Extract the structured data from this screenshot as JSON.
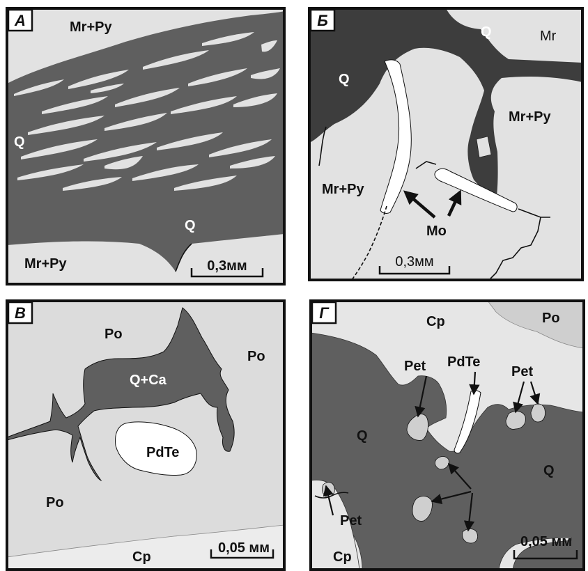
{
  "panels": {
    "a": {
      "letter": "А",
      "labels": [
        "Mr+Py",
        "Q",
        "Q",
        "Mr+Py"
      ],
      "scale": "0,3мм"
    },
    "b": {
      "letter": "Б",
      "labels": [
        "Q",
        "Mr",
        "Q",
        "Mr+Py",
        "Mr+Py",
        "Mo"
      ],
      "scale": "0,3мм"
    },
    "v": {
      "letter": "В",
      "labels": [
        "Po",
        "Po",
        "Q+Ca",
        "PdTe",
        "Po",
        "Cp"
      ],
      "scale": "0,05 мм"
    },
    "g": {
      "letter": "Г",
      "labels": [
        "Cp",
        "Po",
        "Pet",
        "PdTe",
        "Pet",
        "Q",
        "Q",
        "Pet",
        "Cp"
      ],
      "scale": "0,05 мм"
    }
  },
  "colors": {
    "dark": "#5f5f5f",
    "darker": "#3d3d3d",
    "light": "#e2e2e2",
    "white": "#ffffff",
    "midlight": "#cfcfcf"
  }
}
